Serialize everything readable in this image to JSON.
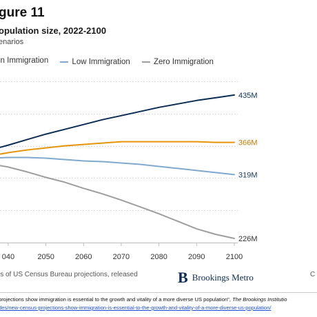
{
  "header": {
    "title": "gure 11",
    "subtitle": "opulation size, 2022-2100",
    "scenarios": "enarios"
  },
  "legend": [
    {
      "label": "in Immigration",
      "color": "#e8940a"
    },
    {
      "label": "Low Immigration",
      "color": "#7fa9cf"
    },
    {
      "label": "Zero Immigration",
      "color": "#9e9e9e"
    }
  ],
  "footer": {
    "source": "is of US Census Bureau projections, released",
    "brand_mark": "B",
    "brand_name": "Brookings Metro",
    "brand_extra": "C",
    "citation_prefix": " projections show immigration is essential to the growth and vitality of a more diverse US population\", ",
    "citation_journal": "The Brookings Institutio",
    "url": "des/new-census-projections-show-immigration-is-essential-to-the-growth-and-vitality-of-a-more-diverse-us-population/"
  },
  "chart_data": {
    "type": "line",
    "title": "",
    "xlabel": "",
    "ylabel": "",
    "x_ticks": [
      "040",
      "2050",
      "2060",
      "2070",
      "2080",
      "2090",
      "2100"
    ],
    "xlim": [
      2036,
      2100
    ],
    "ylim": [
      220,
      465
    ],
    "grid": true,
    "end_labels": [
      {
        "text": "435M",
        "color": "#0b2d55"
      },
      {
        "text": "366M",
        "color": "#c97a00"
      },
      {
        "text": "319M",
        "color": "#1b3a5c"
      },
      {
        "text": "226M",
        "color": "#333333"
      }
    ],
    "series": [
      {
        "name": "",
        "color": "#0b2d55",
        "x": [
          2036,
          2040,
          2045,
          2050,
          2055,
          2060,
          2065,
          2070,
          2075,
          2080,
          2085,
          2090,
          2095,
          2100
        ],
        "y": [
          356,
          362,
          370,
          378,
          385,
          392,
          399,
          405,
          411,
          417,
          422,
          427,
          431,
          435
        ]
      },
      {
        "name": "in Immigration",
        "color": "#e8940a",
        "x": [
          2036,
          2040,
          2045,
          2050,
          2055,
          2060,
          2065,
          2070,
          2075,
          2080,
          2085,
          2090,
          2095,
          2100
        ],
        "y": [
          347,
          351,
          355,
          358,
          361,
          363,
          365,
          367,
          367,
          367,
          367,
          367,
          366,
          366
        ]
      },
      {
        "name": "Low Immigration",
        "color": "#7fa9cf",
        "x": [
          2036,
          2040,
          2045,
          2050,
          2055,
          2060,
          2065,
          2070,
          2075,
          2080,
          2085,
          2090,
          2095,
          2100
        ],
        "y": [
          343,
          344,
          344,
          343,
          341,
          339,
          338,
          336,
          334,
          331,
          328,
          325,
          322,
          319
        ]
      },
      {
        "name": "Zero Immigration",
        "color": "#9e9e9e",
        "x": [
          2036,
          2040,
          2045,
          2050,
          2055,
          2060,
          2065,
          2070,
          2075,
          2080,
          2085,
          2090,
          2095,
          2100
        ],
        "y": [
          334,
          330,
          323,
          315,
          308,
          299,
          291,
          282,
          272,
          262,
          251,
          240,
          232,
          226
        ]
      }
    ]
  }
}
